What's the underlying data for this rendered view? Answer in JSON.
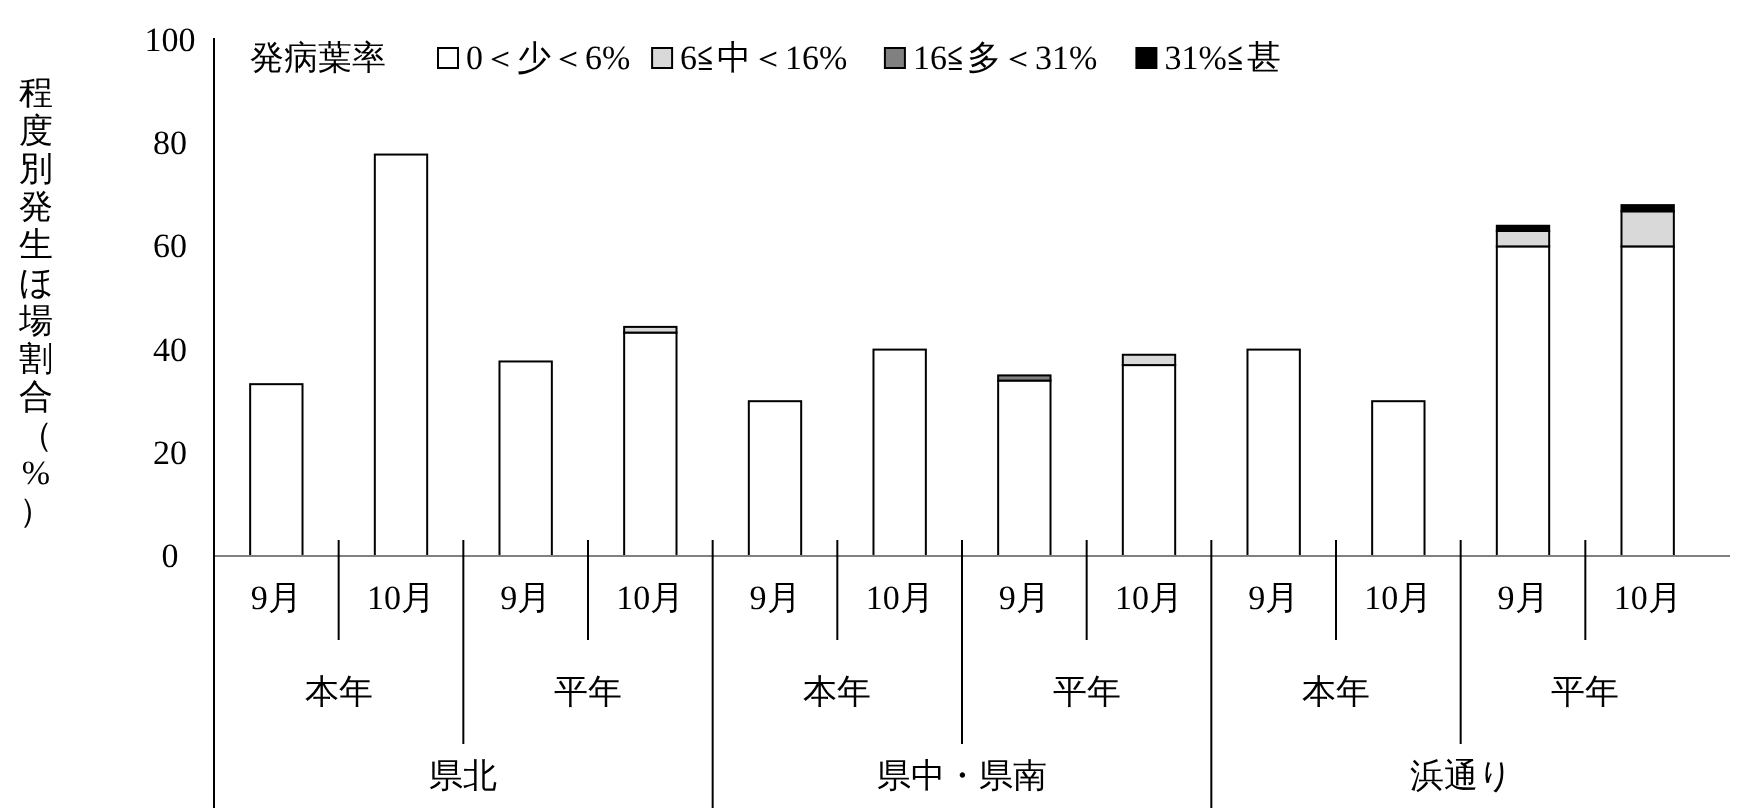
{
  "chart_data": {
    "type": "bar",
    "stacked": true,
    "legend": "top left",
    "legend_title": "発病葉率",
    "ylabel": "程度別発生ほ場割合（%）",
    "categories": [
      "9月",
      "10月",
      "9月",
      "10月",
      "9月",
      "10月",
      "9月",
      "10月",
      "9月",
      "10月",
      "9月",
      "10月"
    ],
    "annotations": [
      "本年",
      "平年",
      "本年",
      "平年",
      "本年",
      "平年",
      "県北",
      "県中・県南",
      "浜通り"
    ],
    "series": [
      {
        "name": "0＜少＜6%",
        "color": "#ffffff",
        "values": [
          33.3,
          77.8,
          37.7,
          43.3,
          30,
          40,
          34,
          37,
          40,
          30,
          60,
          60
        ]
      },
      {
        "name": "6≦中＜16%",
        "color": "#d9d9d9",
        "values": [
          0,
          0,
          0,
          1.1,
          0,
          0,
          0,
          2,
          0,
          0,
          3,
          6.8
        ]
      },
      {
        "name": "16≦多＜31%",
        "color": "#808080",
        "values": [
          0,
          0,
          0,
          0,
          0,
          0,
          1,
          0,
          0,
          0,
          0,
          0
        ]
      },
      {
        "name": "31%≦甚",
        "color": "#000000",
        "values": [
          0,
          0,
          0,
          0,
          0,
          0,
          0,
          0,
          0,
          0,
          1,
          1.2
        ]
      }
    ],
    "ylim": [
      0,
      100
    ],
    "yticks": [
      0,
      20,
      40,
      60,
      80,
      100
    ],
    "grid": false
  }
}
